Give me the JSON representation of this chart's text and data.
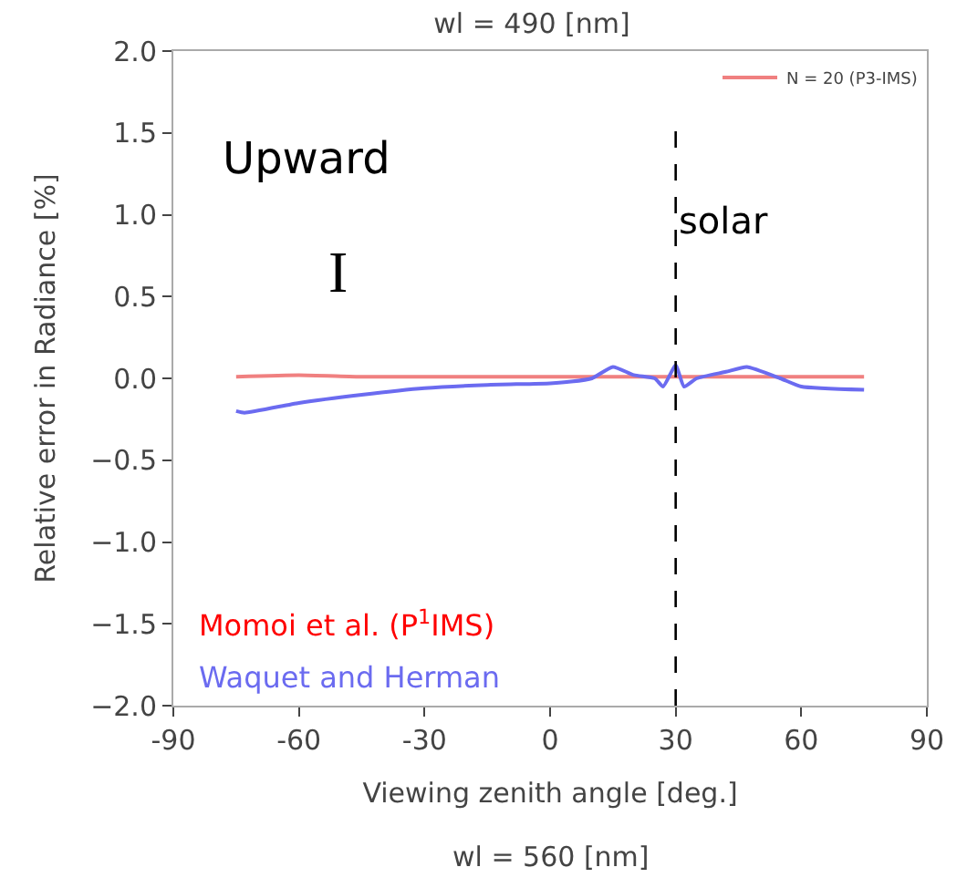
{
  "chart_data": {
    "type": "line",
    "title": "wl = 490 [nm]",
    "xlabel": "Viewing zenith angle [deg.]",
    "ylabel": "Relative error in Radiance [%]",
    "xlim": [
      -90,
      90
    ],
    "xticks": [
      -90,
      -60,
      -30,
      0,
      30,
      60,
      90
    ],
    "ylim": [
      -2.0,
      2.0
    ],
    "yticks": [
      {
        "value": 2.0,
        "label": "2.0"
      },
      {
        "value": 1.5,
        "label": "1.5"
      },
      {
        "value": 1.0,
        "label": "1.0"
      },
      {
        "value": 0.5,
        "label": "0.5"
      },
      {
        "value": 0.0,
        "label": "0.0"
      },
      {
        "value": -0.5,
        "label": "−0.5"
      },
      {
        "value": -1.0,
        "label": "−1.0"
      },
      {
        "value": -1.5,
        "label": "−1.5"
      },
      {
        "value": -2.0,
        "label": "−2.0"
      }
    ],
    "legend": "top right",
    "series": [
      {
        "name": "N = 20 (P3-IMS)",
        "color": "#f08080",
        "x": [
          -75,
          -60,
          -45,
          -30,
          -15,
          0,
          15,
          30,
          45,
          60,
          75
        ],
        "values": [
          0.01,
          0.02,
          0.01,
          0.01,
          0.01,
          0.01,
          0.01,
          0.01,
          0.01,
          0.01,
          0.01
        ]
      },
      {
        "name": "Waquet and Herman",
        "color": "#6b6bf0",
        "x": [
          -75,
          -73,
          -60,
          -45,
          -30,
          -15,
          0,
          5,
          10,
          15,
          20,
          25,
          27,
          30,
          32,
          35,
          42,
          47,
          55,
          60,
          75
        ],
        "values": [
          -0.2,
          -0.21,
          -0.15,
          -0.1,
          -0.06,
          -0.04,
          -0.03,
          -0.02,
          0.0,
          0.07,
          0.02,
          0.0,
          -0.05,
          0.08,
          -0.05,
          0.0,
          0.04,
          0.07,
          0.0,
          -0.05,
          -0.07
        ]
      }
    ],
    "ref_lines": [
      {
        "axis": "x",
        "value": 30,
        "label": "solar",
        "color": "#000000",
        "line_style": "dashed"
      }
    ],
    "annotations": [
      "Upward",
      "I",
      "Momoi et al. (P$^{1}$IMS)",
      "wl = 560 [nm]"
    ]
  }
}
